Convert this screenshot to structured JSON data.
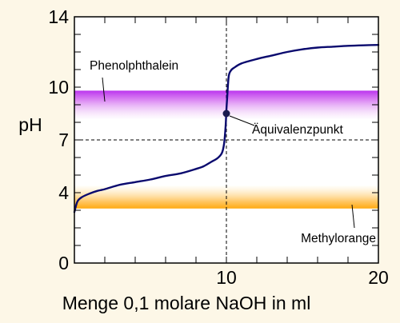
{
  "chart_data": {
    "type": "line",
    "title": "",
    "xlabel": "Menge 0,1 molare NaOH in ml",
    "ylabel": "pH",
    "xlim": [
      0,
      20
    ],
    "ylim": [
      0,
      14
    ],
    "x_ticks": [
      10,
      20
    ],
    "x_tick_labels": [
      "10",
      "20"
    ],
    "y_ticks": [
      0,
      4,
      7,
      10,
      14
    ],
    "y_tick_labels": [
      "0",
      "4",
      "7",
      "10",
      "14"
    ],
    "y_minor_ticks": [
      1,
      2,
      3,
      4,
      5,
      6,
      7,
      8,
      9,
      10,
      11,
      12,
      13
    ],
    "x_minor_ticks": [
      2,
      4,
      6,
      8,
      10,
      12,
      14,
      16,
      18
    ],
    "series": [
      {
        "x": [
          0,
          0.2,
          0.5,
          1,
          1.5,
          2,
          3,
          4,
          5,
          6,
          7,
          8,
          8.5,
          9,
          9.4,
          9.7,
          9.85,
          9.95,
          10,
          10.05,
          10.15,
          10.3,
          10.5,
          11,
          12,
          13,
          14,
          15,
          16,
          17,
          18,
          19,
          20
        ],
        "y": [
          2.9,
          3.5,
          3.75,
          3.95,
          4.1,
          4.2,
          4.45,
          4.6,
          4.75,
          4.95,
          5.1,
          5.35,
          5.5,
          5.75,
          5.95,
          6.25,
          6.8,
          7.8,
          8.7,
          9.4,
          10.6,
          10.95,
          11.1,
          11.35,
          11.6,
          11.8,
          12.0,
          12.15,
          12.25,
          12.3,
          12.35,
          12.38,
          12.4
        ],
        "color": "#0a0a6e"
      }
    ],
    "reference_lines": {
      "vertical_x": 10,
      "horizontal_y": 7,
      "style": "dashed"
    },
    "points": [
      {
        "x": 10,
        "y": 8.5,
        "label": "Äquivalenzpunkt"
      }
    ],
    "bands": [
      {
        "label": "Phenolphthalein",
        "y_from": 8.2,
        "y_to": 9.8,
        "color": "#bb33ee",
        "fade": "down"
      },
      {
        "label": "Methylorange",
        "y_from": 3.1,
        "y_to": 4.4,
        "color": "#ffaa11",
        "fade": "up"
      }
    ],
    "grid": false,
    "legend": "none"
  },
  "colors": {
    "background": "#fdf7e7",
    "plot_background": "#ffffff",
    "curve": "#0a0a6e",
    "phenolphthalein": "#bb33ee",
    "methylorange": "#ffaa11"
  }
}
